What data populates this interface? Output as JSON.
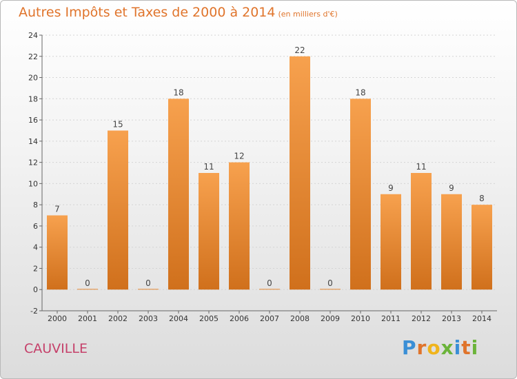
{
  "chart_data": {
    "type": "bar",
    "title": "Autres Impôts et Taxes de 2000 à 2014",
    "unit": "(en milliers d'€)",
    "categories": [
      "2000",
      "2001",
      "2002",
      "2003",
      "2004",
      "2005",
      "2006",
      "2007",
      "2008",
      "2009",
      "2010",
      "2011",
      "2012",
      "2013",
      "2014"
    ],
    "values": [
      7,
      0,
      15,
      0,
      18,
      11,
      12,
      0,
      22,
      0,
      18,
      9,
      11,
      9,
      8
    ],
    "ylim": [
      -2,
      24
    ],
    "yticks": [
      -2,
      0,
      2,
      4,
      6,
      8,
      10,
      12,
      14,
      16,
      18,
      20,
      22,
      24
    ],
    "grid": true,
    "bar_color_top": "#f7a14e",
    "bar_color_bottom": "#d0701c"
  },
  "location": "CAUVILLE",
  "logo": {
    "letters": [
      "P",
      "r",
      "o",
      "x",
      "i",
      "t",
      "i"
    ],
    "colors": [
      "#3a8fd6",
      "#e0742b",
      "#f0b41c",
      "#6bb43a",
      "#3a8fd6",
      "#e0742b",
      "#6bb43a"
    ]
  }
}
